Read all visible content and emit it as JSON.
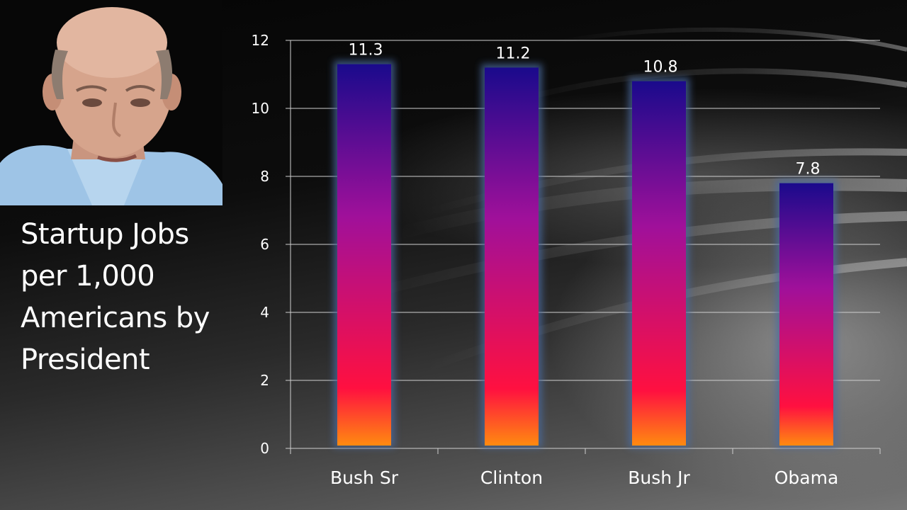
{
  "title_lines": [
    "Startup Jobs",
    "per 1,000",
    "Americans by",
    "President"
  ],
  "colors": {
    "bar_top": "#1a0a8c",
    "bar_mid": "#a0109a",
    "bar_low": "#ff1040",
    "bar_bottom": "#ff8a10",
    "bar_glow": "#4a6aa0",
    "grid": "#cfcfcf",
    "text": "#ffffff"
  },
  "chart_data": {
    "type": "bar",
    "title": "Startup Jobs per 1,000 Americans by President",
    "categories": [
      "Bush Sr",
      "Clinton",
      "Bush Jr",
      "Obama"
    ],
    "values": [
      11.3,
      11.2,
      10.8,
      7.8
    ],
    "data_labels": [
      "11.3",
      "11.2",
      "10.8",
      "7.8"
    ],
    "yticks": [
      "0",
      "2",
      "4",
      "6",
      "8",
      "10",
      "12"
    ],
    "ylim": [
      0,
      12
    ],
    "xlabel": "",
    "ylabel": "",
    "grid": true,
    "legend": "none"
  }
}
